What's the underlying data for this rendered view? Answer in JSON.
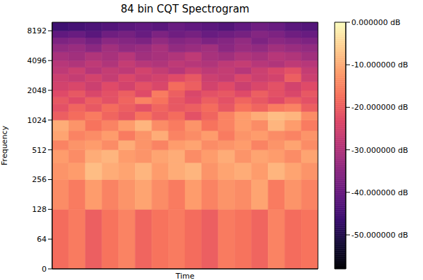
{
  "chart_data": {
    "type": "heatmap",
    "title": "84 bin CQT Spectrogram",
    "x_label": "Time",
    "y_label": "Frequency",
    "log": "y",
    "tick_labels": "y",
    "color": "magma",
    "xlim": [
      0,
      16
    ],
    "ylim": [
      0,
      10000
    ],
    "yticks": [
      0,
      64,
      128,
      256,
      512,
      1024,
      2048,
      4096,
      8192
    ],
    "y_edges": [
      0,
      128,
      256,
      380,
      512,
      640,
      800,
      1024,
      1250,
      1500,
      1750,
      2048,
      2500,
      3000,
      3500,
      4096,
      5000,
      6000,
      7000,
      8192,
      10000
    ],
    "cells": [
      [
        -18,
        -16,
        -20,
        -17,
        -15,
        -19,
        -17,
        -16,
        -18,
        -20,
        -16,
        -17,
        -19,
        -15,
        -18,
        -17
      ],
      [
        -14,
        -16,
        -12,
        -15,
        -13,
        -11,
        -14,
        -16,
        -12,
        -15,
        -13,
        -14,
        -11,
        -16,
        -13,
        -15
      ],
      [
        -13,
        -12,
        -8,
        -10,
        -11,
        -9,
        -12,
        -10,
        -9,
        -13,
        -11,
        -10,
        -12,
        -9,
        -11,
        -13
      ],
      [
        -12,
        -14,
        -10,
        -9,
        -12,
        -13,
        -11,
        -10,
        -14,
        -12,
        -10,
        -13,
        -11,
        -12,
        -14,
        -11
      ],
      [
        -15,
        -13,
        -12,
        -14,
        -10,
        -13,
        -15,
        -12,
        -11,
        -14,
        -13,
        -12,
        -15,
        -13,
        -11,
        -14
      ],
      [
        -11,
        -15,
        -14,
        -12,
        -16,
        -13,
        -10,
        -15,
        -14,
        -12,
        -16,
        -13,
        -12,
        -14,
        -15,
        -13
      ],
      [
        -10,
        -13,
        -17,
        -15,
        -12,
        -9,
        -14,
        -16,
        -13,
        -17,
        -15,
        -12,
        -14,
        -9,
        -12,
        -16
      ],
      [
        -20,
        -18,
        -16,
        -19,
        -21,
        -17,
        -20,
        -18,
        -22,
        -19,
        -15,
        -12,
        -10,
        -8,
        -9,
        -14
      ],
      [
        -22,
        -19,
        -21,
        -18,
        -20,
        -22,
        -19,
        -21,
        -20,
        -18,
        -21,
        -17,
        -19,
        -16,
        -15,
        -20
      ],
      [
        -21,
        -23,
        -20,
        -22,
        -19,
        -15,
        -17,
        -21,
        -23,
        -20,
        -22,
        -19,
        -21,
        -23,
        -20,
        -22
      ],
      [
        -23,
        -21,
        -24,
        -22,
        -20,
        -23,
        -16,
        -20,
        -24,
        -22,
        -21,
        -23,
        -20,
        -22,
        -24,
        -21
      ],
      [
        -25,
        -24,
        -26,
        -23,
        -25,
        -22,
        -24,
        -18,
        -20,
        -25,
        -23,
        -26,
        -24,
        -22,
        -25,
        -23
      ],
      [
        -26,
        -27,
        -25,
        -27,
        -24,
        -26,
        -25,
        -23,
        -21,
        -26,
        -27,
        -24,
        -26,
        -25,
        -20,
        -26
      ],
      [
        -28,
        -26,
        -29,
        -27,
        -28,
        -25,
        -27,
        -29,
        -26,
        -28,
        -27,
        -29,
        -26,
        -24,
        -22,
        -27
      ],
      [
        -29,
        -30,
        -28,
        -30,
        -27,
        -29,
        -30,
        -28,
        -29,
        -30,
        -28,
        -27,
        -29,
        -30,
        -28,
        -29
      ],
      [
        -31,
        -32,
        -30,
        -31,
        -29,
        -32,
        -31,
        -30,
        -28,
        -31,
        -32,
        -30,
        -31,
        -29,
        -30,
        -32
      ],
      [
        -34,
        -33,
        -35,
        -32,
        -34,
        -33,
        -31,
        -34,
        -33,
        -32,
        -35,
        -33,
        -34,
        -32,
        -33,
        -34
      ],
      [
        -37,
        -36,
        -38,
        -35,
        -36,
        -37,
        -34,
        -36,
        -35,
        -37,
        -36,
        -34,
        -37,
        -35,
        -36,
        -37
      ],
      [
        -41,
        -40,
        -42,
        -39,
        -38,
        -40,
        -37,
        -39,
        -38,
        -40,
        -39,
        -38,
        -36,
        -37,
        -39,
        -40
      ],
      [
        -46,
        -45,
        -44,
        -43,
        -42,
        -41,
        -42,
        -40,
        -41,
        -42,
        -43,
        -41,
        -39,
        -40,
        -42,
        -43
      ]
    ],
    "colorbar": {
      "range": [
        -58,
        0
      ],
      "ticks": [
        {
          "value": 0,
          "label": "0.000000 dB"
        },
        {
          "value": -10,
          "label": "-10.000000 dB"
        },
        {
          "value": -20,
          "label": "-20.000000 dB"
        },
        {
          "value": -30,
          "label": "-30.000000 dB"
        },
        {
          "value": -40,
          "label": "-40.000000 dB"
        },
        {
          "value": -50,
          "label": "-50.000000 dB"
        }
      ]
    }
  }
}
